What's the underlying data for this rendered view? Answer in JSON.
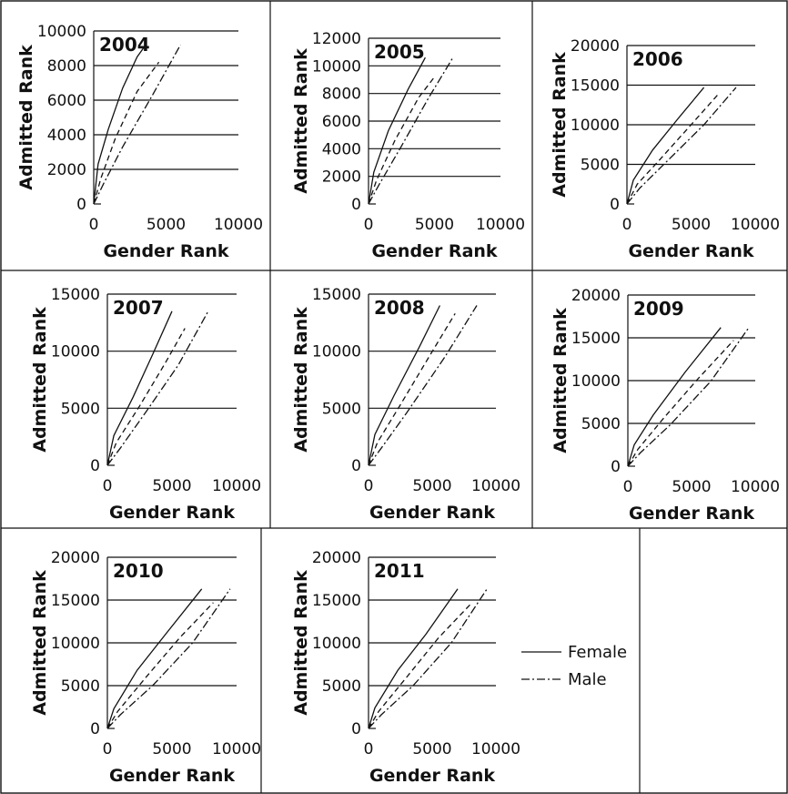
{
  "legend": {
    "female": "Female",
    "male": "Male"
  },
  "chart_data": [
    {
      "type": "line",
      "title": "2004",
      "xlabel": "Gender Rank",
      "ylabel": "Admitted Rank",
      "xlim": [
        0,
        10000
      ],
      "ylim": [
        0,
        10000
      ],
      "xticks": [
        "0",
        "5000",
        "10000"
      ],
      "yticks": [
        "0",
        "2000",
        "4000",
        "6000",
        "8000",
        "10000"
      ],
      "series": [
        {
          "name": "Female",
          "style": "solid",
          "x": [
            0,
            300,
            1000,
            2000,
            3000,
            3600
          ],
          "y": [
            0,
            2300,
            4300,
            6700,
            8500,
            9200
          ]
        },
        {
          "style": "dashed",
          "x": [
            0,
            500,
            1500,
            3000,
            4500
          ],
          "y": [
            0,
            1500,
            3800,
            6500,
            8200
          ]
        },
        {
          "name": "Male",
          "style": "dashdot",
          "x": [
            0,
            700,
            2000,
            4000,
            6000
          ],
          "y": [
            0,
            1200,
            3300,
            6200,
            9200
          ]
        }
      ]
    },
    {
      "type": "line",
      "title": "2005",
      "xlabel": "Gender Rank",
      "ylabel": "Admitted Rank",
      "xlim": [
        0,
        10000
      ],
      "ylim": [
        0,
        12000
      ],
      "xticks": [
        "0",
        "5000",
        "10000"
      ],
      "yticks": [
        "0",
        "2000",
        "4000",
        "6000",
        "8000",
        "10000",
        "12000"
      ],
      "series": [
        {
          "name": "Female",
          "style": "solid",
          "x": [
            0,
            400,
            1500,
            3000,
            4300
          ],
          "y": [
            0,
            2300,
            5300,
            8300,
            10600
          ]
        },
        {
          "style": "dashed",
          "x": [
            0,
            600,
            2000,
            3800,
            5000
          ],
          "y": [
            0,
            1700,
            4600,
            7700,
            9200
          ]
        },
        {
          "name": "Male",
          "style": "dashdot",
          "x": [
            0,
            800,
            2500,
            4500,
            6400
          ],
          "y": [
            0,
            1400,
            4200,
            7600,
            10600
          ]
        }
      ]
    },
    {
      "type": "line",
      "title": "2006",
      "xlabel": "Gender Rank",
      "ylabel": "Admitted Rank",
      "xlim": [
        0,
        10000
      ],
      "ylim": [
        0,
        20000
      ],
      "xticks": [
        "0",
        "5000",
        "10000"
      ],
      "yticks": [
        "0",
        "5000",
        "10000",
        "15000",
        "20000"
      ],
      "series": [
        {
          "name": "Female",
          "style": "solid",
          "x": [
            0,
            500,
            2000,
            4000,
            6000
          ],
          "y": [
            0,
            3000,
            6800,
            10800,
            14700
          ]
        },
        {
          "style": "dashed",
          "x": [
            0,
            800,
            2500,
            5000,
            7200
          ],
          "y": [
            0,
            2500,
            5500,
            10000,
            14000
          ]
        },
        {
          "name": "Male",
          "style": "dashdot",
          "x": [
            0,
            1000,
            3000,
            6000,
            8500
          ],
          "y": [
            0,
            2000,
            5200,
            10000,
            14700
          ]
        }
      ]
    },
    {
      "type": "line",
      "title": "2007",
      "xlabel": "Gender Rank",
      "ylabel": "Admitted Rank",
      "xlim": [
        0,
        10000
      ],
      "ylim": [
        0,
        15000
      ],
      "xticks": [
        "0",
        "5000",
        "10000"
      ],
      "yticks": [
        "0",
        "5000",
        "10000",
        "15000"
      ],
      "series": [
        {
          "name": "Female",
          "style": "solid",
          "x": [
            0,
            500,
            2000,
            3500,
            5000
          ],
          "y": [
            0,
            2600,
            6000,
            9700,
            13500
          ]
        },
        {
          "style": "dashed",
          "x": [
            0,
            700,
            2500,
            4500,
            6000
          ],
          "y": [
            0,
            2000,
            5200,
            9000,
            12000
          ]
        },
        {
          "name": "Male",
          "style": "dashdot",
          "x": [
            0,
            1000,
            3000,
            5500,
            7800
          ],
          "y": [
            0,
            1500,
            4700,
            8800,
            13500
          ]
        }
      ]
    },
    {
      "type": "line",
      "title": "2008",
      "xlabel": "Gender Rank",
      "ylabel": "Admitted Rank",
      "xlim": [
        0,
        10000
      ],
      "ylim": [
        0,
        15000
      ],
      "xticks": [
        "0",
        "5000",
        "10000"
      ],
      "yticks": [
        "0",
        "5000",
        "10000",
        "15000"
      ],
      "series": [
        {
          "name": "Female",
          "style": "solid",
          "x": [
            0,
            500,
            2000,
            4000,
            5600
          ],
          "y": [
            0,
            2700,
            6100,
            10400,
            14000
          ]
        },
        {
          "style": "dashed",
          "x": [
            0,
            700,
            2500,
            4800,
            6800
          ],
          "y": [
            0,
            2000,
            5300,
            9600,
            13300
          ]
        },
        {
          "name": "Male",
          "style": "dashdot",
          "x": [
            0,
            1000,
            3000,
            6000,
            8500
          ],
          "y": [
            0,
            1500,
            4600,
            9500,
            14000
          ]
        }
      ]
    },
    {
      "type": "line",
      "title": "2009",
      "xlabel": "Gender Rank",
      "ylabel": "Admitted Rank",
      "xlim": [
        0,
        10000
      ],
      "ylim": [
        0,
        20000
      ],
      "xticks": [
        "0",
        "5000",
        "10000"
      ],
      "yticks": [
        "0",
        "5000",
        "10000",
        "15000",
        "20000"
      ],
      "series": [
        {
          "name": "Female",
          "style": "solid",
          "x": [
            0,
            500,
            2000,
            4500,
            7300
          ],
          "y": [
            0,
            2500,
            6000,
            11000,
            16200
          ]
        },
        {
          "style": "dashed",
          "x": [
            0,
            800,
            2800,
            5500,
            8300
          ],
          "y": [
            0,
            2000,
            5600,
            10200,
            14700
          ]
        },
        {
          "name": "Male",
          "style": "dashdot",
          "x": [
            0,
            1000,
            3300,
            6500,
            9500
          ],
          "y": [
            0,
            1600,
            4800,
            9900,
            16200
          ]
        }
      ]
    },
    {
      "type": "line",
      "title": "2010",
      "xlabel": "Gender Rank",
      "ylabel": "Admitted Rank",
      "xlim": [
        0,
        10000
      ],
      "ylim": [
        0,
        20000
      ],
      "xticks": [
        "0",
        "5000",
        "10000"
      ],
      "yticks": [
        "0",
        "5000",
        "10000",
        "15000",
        "20000"
      ],
      "series": [
        {
          "name": "Female",
          "style": "solid",
          "x": [
            0,
            500,
            2300,
            4500,
            7300
          ],
          "y": [
            0,
            2300,
            6800,
            11000,
            16300
          ]
        },
        {
          "style": "dashed",
          "x": [
            0,
            800,
            3000,
            5600,
            8200
          ],
          "y": [
            0,
            2000,
            6000,
            10600,
            14700
          ]
        },
        {
          "name": "Male",
          "style": "dashdot",
          "x": [
            0,
            1000,
            3500,
            6600,
            9500
          ],
          "y": [
            0,
            1600,
            5000,
            10000,
            16300
          ]
        }
      ]
    },
    {
      "type": "line",
      "title": "2011",
      "xlabel": "Gender Rank",
      "ylabel": "Admitted Rank",
      "xlim": [
        0,
        10000
      ],
      "ylim": [
        0,
        20000
      ],
      "xticks": [
        "0",
        "5000",
        "10000"
      ],
      "yticks": [
        "0",
        "5000",
        "10000",
        "15000",
        "20000"
      ],
      "series": [
        {
          "name": "Female",
          "style": "solid",
          "x": [
            0,
            500,
            2300,
            4500,
            7000
          ],
          "y": [
            0,
            2400,
            6800,
            11000,
            16300
          ]
        },
        {
          "style": "dashed",
          "x": [
            0,
            800,
            3000,
            5500,
            8000
          ],
          "y": [
            0,
            2000,
            6000,
            10600,
            14500
          ]
        },
        {
          "name": "Male",
          "style": "dashdot",
          "x": [
            0,
            1000,
            3500,
            6500,
            9300
          ],
          "y": [
            0,
            1600,
            5000,
            10000,
            16300
          ]
        }
      ]
    }
  ]
}
